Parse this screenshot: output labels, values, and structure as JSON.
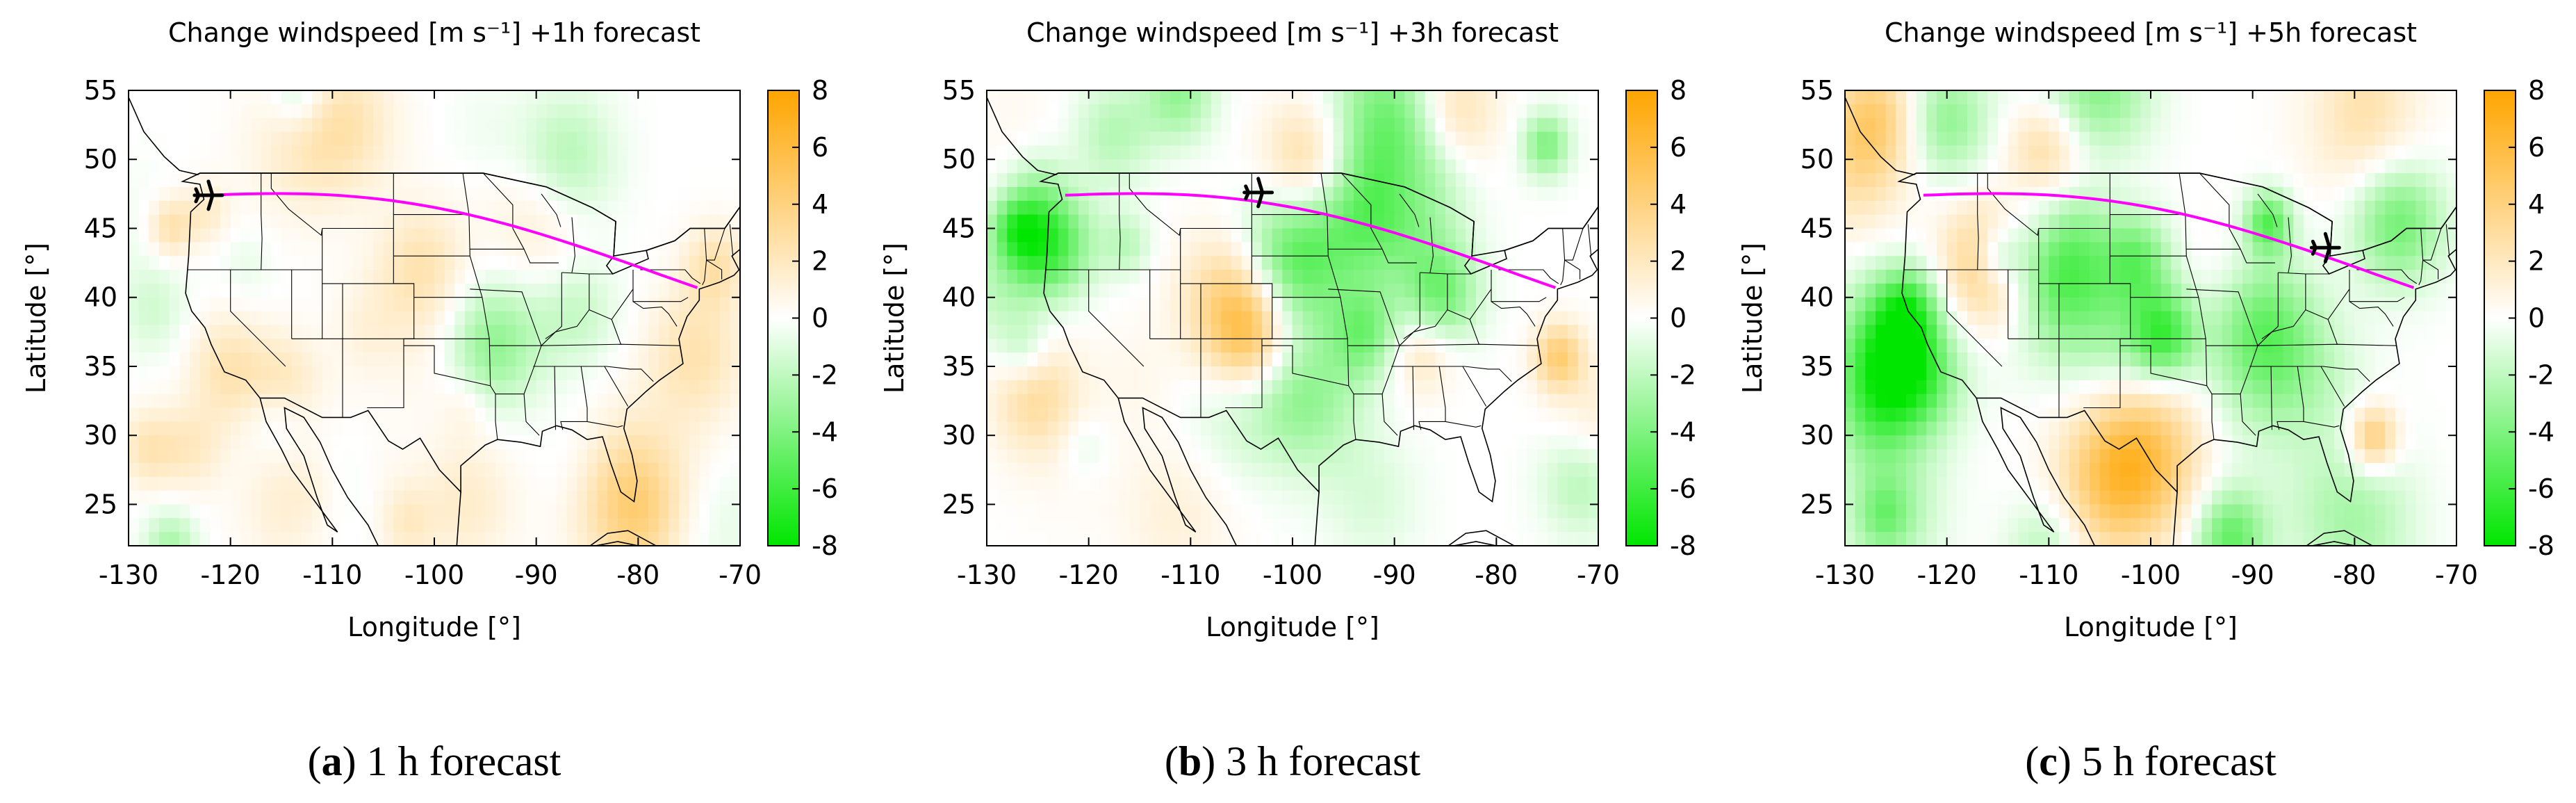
{
  "chart_data": [
    {
      "type": "heatmap",
      "title": "Change windspeed [m s⁻¹] +1h forecast",
      "xlabel": "Longitude [°]",
      "ylabel": "Latitude [°]",
      "xlim": [
        -130,
        -70
      ],
      "ylim": [
        22,
        55
      ],
      "xticks": [
        -130,
        -120,
        -110,
        -100,
        -90,
        -80,
        -70
      ],
      "yticks": [
        25,
        30,
        35,
        40,
        45,
        50,
        55
      ],
      "colorbar": {
        "range": [
          -8,
          8
        ],
        "ticks": [
          8,
          6,
          4,
          2,
          0,
          -2,
          -4,
          -6,
          -8
        ],
        "min_color": "#00e600",
        "mid_color": "#ffffff",
        "max_color": "#ffa500"
      },
      "route": {
        "color": "#ff00ff",
        "start": [
          -122.3,
          47.4
        ],
        "end": [
          -74.2,
          40.7
        ]
      },
      "aircraft_position": [
        -122.3,
        47.4
      ],
      "caption_letter": "a",
      "caption_text": " 1 h forecast",
      "seed": 11
    },
    {
      "type": "heatmap",
      "title": "Change windspeed [m s⁻¹] +3h forecast",
      "xlabel": "Longitude [°]",
      "ylabel": "Latitude [°]",
      "xlim": [
        -130,
        -70
      ],
      "ylim": [
        22,
        55
      ],
      "xticks": [
        -130,
        -120,
        -110,
        -100,
        -90,
        -80,
        -70
      ],
      "yticks": [
        25,
        30,
        35,
        40,
        45,
        50,
        55
      ],
      "colorbar": {
        "range": [
          -8,
          8
        ],
        "ticks": [
          8,
          6,
          4,
          2,
          0,
          -2,
          -4,
          -6,
          -8
        ],
        "min_color": "#00e600",
        "mid_color": "#ffffff",
        "max_color": "#ffa500"
      },
      "route": {
        "color": "#ff00ff",
        "start": [
          -122.3,
          47.4
        ],
        "end": [
          -74.2,
          40.7
        ]
      },
      "aircraft_position": [
        -103.5,
        47.6
      ],
      "caption_letter": "b",
      "caption_text": " 3 h forecast",
      "seed": 23
    },
    {
      "type": "heatmap",
      "title": "Change windspeed [m s⁻¹] +5h forecast",
      "xlabel": "Longitude [°]",
      "ylabel": "Latitude [°]",
      "xlim": [
        -130,
        -70
      ],
      "ylim": [
        22,
        55
      ],
      "xticks": [
        -130,
        -120,
        -110,
        -100,
        -90,
        -80,
        -70
      ],
      "yticks": [
        25,
        30,
        35,
        40,
        45,
        50,
        55
      ],
      "colorbar": {
        "range": [
          -8,
          8
        ],
        "ticks": [
          8,
          6,
          4,
          2,
          0,
          -2,
          -4,
          -6,
          -8
        ],
        "min_color": "#00e600",
        "mid_color": "#ffffff",
        "max_color": "#ffa500"
      },
      "route": {
        "color": "#ff00ff",
        "start": [
          -122.3,
          47.4
        ],
        "end": [
          -74.2,
          40.7
        ]
      },
      "aircraft_position": [
        -83.0,
        43.6
      ],
      "caption_letter": "c",
      "caption_text": " 5 h forecast",
      "seed": 37
    }
  ]
}
